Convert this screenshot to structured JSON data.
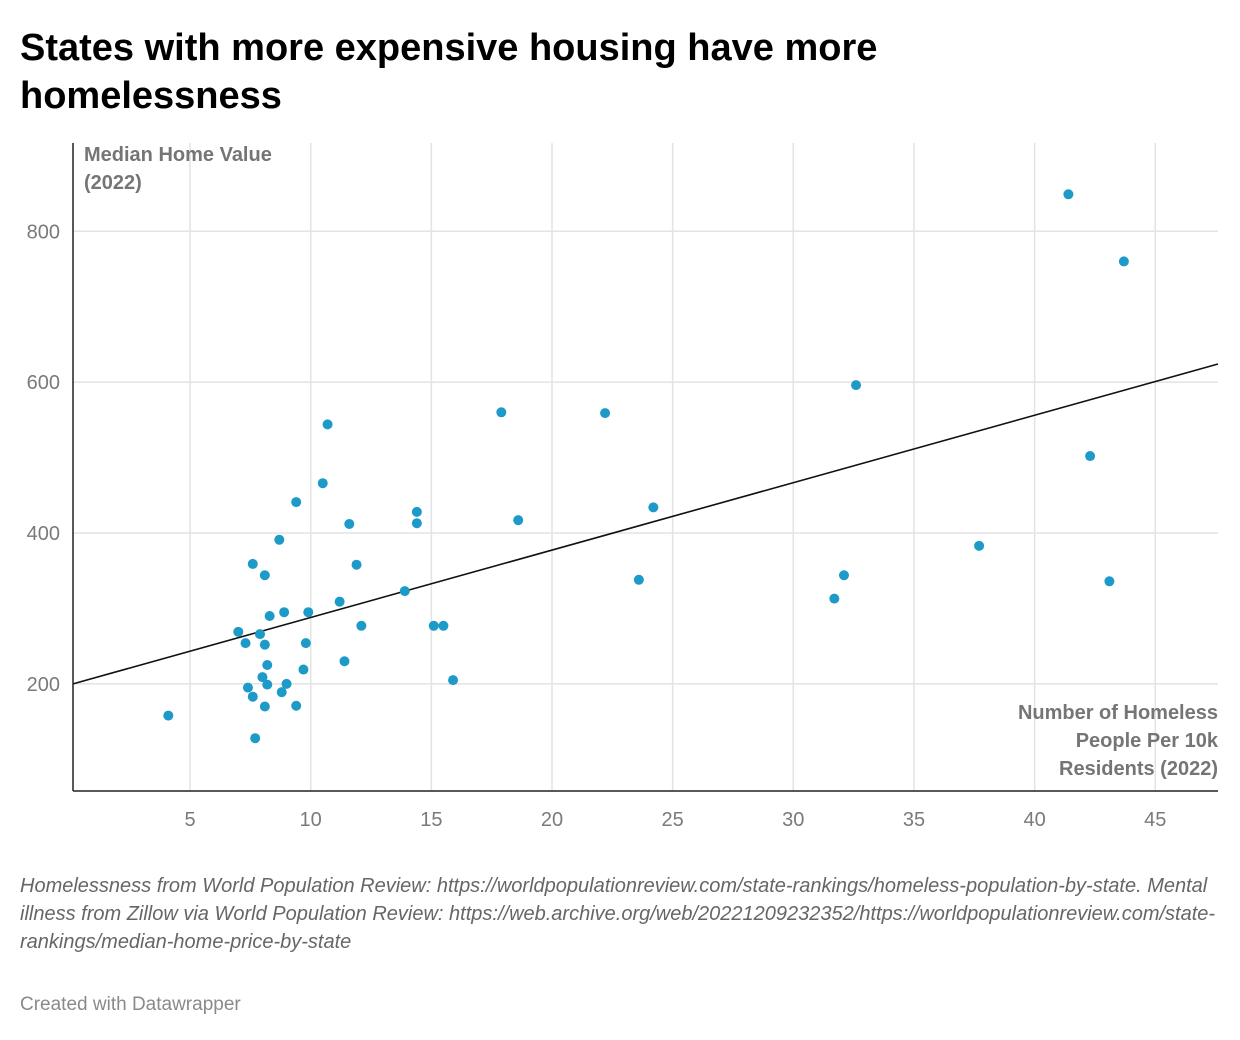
{
  "chart_data": {
    "type": "scatter",
    "title": "States with more expensive housing have more homelessness",
    "xlabel": [
      "Number of Homeless",
      "People Per 10k",
      "Residents (2022)"
    ],
    "ylabel": [
      "Median Home Value",
      "(2022)"
    ],
    "xlim": [
      0.15,
      47.6
    ],
    "ylim": [
      58,
      917
    ],
    "xticks": [
      5,
      10,
      15,
      20,
      25,
      30,
      35,
      40,
      45
    ],
    "yticks": [
      200,
      400,
      600,
      800
    ],
    "grid": true,
    "point_color": "#1d9ac8",
    "trendline": {
      "x": [
        0.15,
        47.6
      ],
      "y": [
        200,
        624
      ],
      "color": "#111111"
    },
    "points": [
      [
        4.1,
        158
      ],
      [
        41.4,
        849
      ],
      [
        43.7,
        760
      ],
      [
        32.6,
        596
      ],
      [
        42.3,
        502
      ],
      [
        37.7,
        383
      ],
      [
        32.1,
        344
      ],
      [
        43.1,
        336
      ],
      [
        31.7,
        313
      ],
      [
        17.9,
        560
      ],
      [
        22.2,
        559
      ],
      [
        24.2,
        434
      ],
      [
        18.6,
        417
      ],
      [
        23.6,
        338
      ],
      [
        10.7,
        544
      ],
      [
        10.5,
        466
      ],
      [
        9.4,
        441
      ],
      [
        11.6,
        412
      ],
      [
        14.4,
        428
      ],
      [
        14.4,
        413
      ],
      [
        8.7,
        391
      ],
      [
        7.6,
        359
      ],
      [
        11.9,
        358
      ],
      [
        8.1,
        344
      ],
      [
        13.9,
        323
      ],
      [
        11.2,
        309
      ],
      [
        8.9,
        295
      ],
      [
        9.9,
        295
      ],
      [
        8.3,
        290
      ],
      [
        12.1,
        277
      ],
      [
        15.1,
        277
      ],
      [
        15.5,
        277
      ],
      [
        7.0,
        269
      ],
      [
        7.9,
        266
      ],
      [
        7.3,
        254
      ],
      [
        8.1,
        252
      ],
      [
        9.8,
        254
      ],
      [
        11.4,
        230
      ],
      [
        8.2,
        225
      ],
      [
        9.7,
        219
      ],
      [
        15.9,
        205
      ],
      [
        8.0,
        209
      ],
      [
        7.4,
        195
      ],
      [
        8.2,
        199
      ],
      [
        9.0,
        200
      ],
      [
        7.6,
        183
      ],
      [
        8.8,
        189
      ],
      [
        8.1,
        170
      ],
      [
        9.4,
        171
      ],
      [
        7.7,
        128
      ]
    ]
  },
  "footer": {
    "notes": "Homelessness from World Population Review: https://worldpopulationreview.com/state-rankings/homeless-population-by-state. Mental illness from Zillow via World Population Review: https://web.archive.org/web/20221209232352/https://worldpopulationreview.com/state-rankings/median-home-price-by-state",
    "credit": "Created with Datawrapper"
  }
}
